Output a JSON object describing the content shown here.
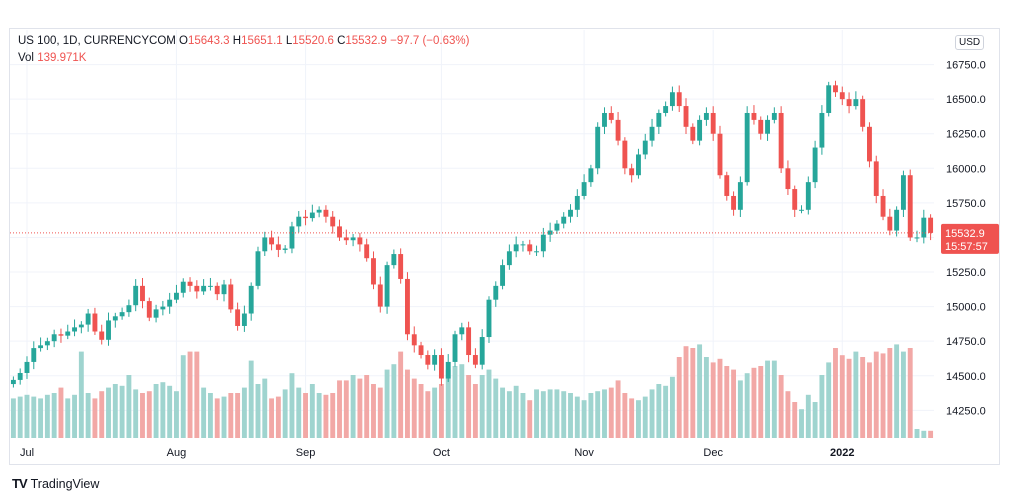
{
  "legend": {
    "symbol": "US 100, 1D, CURRENCYCOM",
    "o_label": "O",
    "o_value": "15643.3",
    "h_label": "H",
    "h_value": "15651.1",
    "l_label": "L",
    "l_value": "15520.6",
    "c_label": "C",
    "c_value": "15532.9",
    "change": "−97.7 (−0.63%)",
    "vol_label": "Vol",
    "vol_value": "139.971K"
  },
  "currency": "USD",
  "brand": "TradingView",
  "colors": {
    "up": "#26a69a",
    "down": "#ef5350",
    "up_vol": "#9fd4cf",
    "down_vol": "#f2a8a6",
    "grid": "#f0f3fa",
    "axis_text": "#131722"
  },
  "chart_data": {
    "type": "candlestick",
    "y_ticks": [
      "14250.0",
      "14500.0",
      "14750.0",
      "15000.0",
      "15250.0",
      "15500.0",
      "15750.0",
      "16000.0",
      "16250.0",
      "16500.0",
      "16750.0"
    ],
    "y_range": [
      14050,
      17000
    ],
    "x_labels": [
      "Jul",
      "Aug",
      "Sep",
      "Oct",
      "Nov",
      "Dec",
      "2022"
    ],
    "x_label_index": [
      2,
      24,
      43,
      63,
      84,
      103,
      122
    ],
    "last_price": "15532.9",
    "countdown": "15:57:57",
    "last_value": 15532.9,
    "closes": [
      14470,
      14520,
      14600,
      14700,
      14720,
      14750,
      14800,
      14790,
      14820,
      14850,
      14870,
      14950,
      14820,
      14760,
      14900,
      14930,
      14960,
      15010,
      15150,
      15040,
      14920,
      14980,
      15000,
      15050,
      15100,
      15180,
      15150,
      15110,
      15150,
      15150,
      15090,
      15160,
      14980,
      14860,
      14950,
      15150,
      15400,
      15500,
      15450,
      15410,
      15420,
      15580,
      15650,
      15640,
      15680,
      15700,
      15650,
      15580,
      15500,
      15480,
      15500,
      15450,
      15350,
      15160,
      15000,
      15300,
      15380,
      15200,
      14800,
      14720,
      14650,
      14580,
      14650,
      14480,
      14600,
      14800,
      14850,
      14650,
      14580,
      14780,
      15050,
      15150,
      15300,
      15400,
      15450,
      15450,
      15400,
      15400,
      15520,
      15550,
      15600,
      15650,
      15700,
      15800,
      15900,
      16000,
      16300,
      16400,
      16350,
      16200,
      16000,
      15950,
      16100,
      16200,
      16300,
      16400,
      16450,
      16550,
      16450,
      16300,
      16200,
      16350,
      16400,
      16250,
      15950,
      15800,
      15700,
      15900,
      16400,
      16350,
      16250,
      16350,
      16400,
      16000,
      15850,
      15700,
      15700,
      15900,
      16150,
      16400,
      16600,
      16550,
      16500,
      16450,
      16500,
      16300,
      16050,
      15800,
      15650,
      15550,
      15700,
      15950,
      15500,
      15500,
      15643,
      15533
    ],
    "volumes": [
      0.22,
      0.23,
      0.24,
      0.23,
      0.22,
      0.24,
      0.25,
      0.28,
      0.22,
      0.24,
      0.48,
      0.25,
      0.22,
      0.26,
      0.28,
      0.3,
      0.29,
      0.35,
      0.27,
      0.25,
      0.26,
      0.3,
      0.31,
      0.29,
      0.26,
      0.46,
      0.48,
      0.48,
      0.28,
      0.25,
      0.22,
      0.23,
      0.25,
      0.25,
      0.28,
      0.43,
      0.3,
      0.33,
      0.22,
      0.23,
      0.27,
      0.36,
      0.28,
      0.25,
      0.3,
      0.25,
      0.24,
      0.25,
      0.32,
      0.32,
      0.35,
      0.33,
      0.35,
      0.3,
      0.28,
      0.38,
      0.41,
      0.48,
      0.38,
      0.33,
      0.3,
      0.26,
      0.28,
      0.3,
      0.38,
      0.4,
      0.41,
      0.35,
      0.3,
      0.35,
      0.38,
      0.33,
      0.28,
      0.26,
      0.29,
      0.25,
      0.21,
      0.27,
      0.26,
      0.27,
      0.27,
      0.26,
      0.25,
      0.23,
      0.21,
      0.25,
      0.26,
      0.27,
      0.28,
      0.32,
      0.25,
      0.22,
      0.21,
      0.23,
      0.27,
      0.3,
      0.29,
      0.34,
      0.45,
      0.51,
      0.5,
      0.52,
      0.45,
      0.42,
      0.44,
      0.4,
      0.38,
      0.32,
      0.36,
      0.39,
      0.4,
      0.43,
      0.43,
      0.35,
      0.26,
      0.2,
      0.16,
      0.24,
      0.2,
      0.35,
      0.42,
      0.5,
      0.46,
      0.44,
      0.48,
      0.45,
      0.42,
      0.48,
      0.47,
      0.5,
      0.52,
      0.48,
      0.5,
      0.05,
      0.04,
      0.04
    ]
  }
}
